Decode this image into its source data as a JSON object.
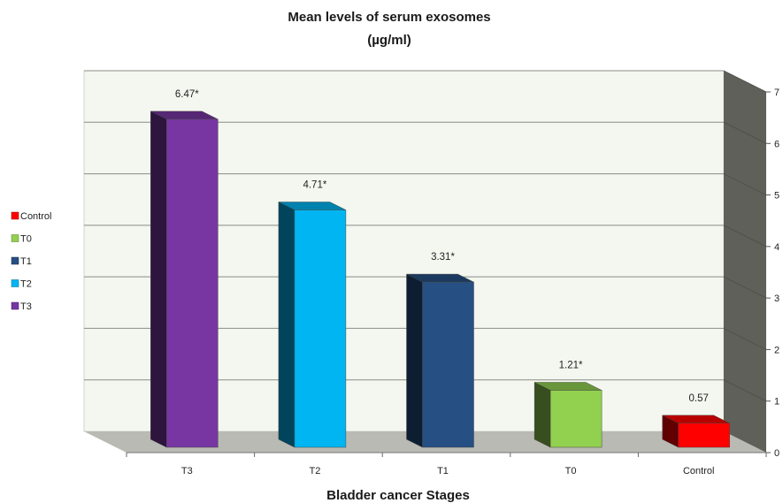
{
  "chart_data": {
    "type": "bar",
    "title": "Mean levels of serum exosomes",
    "subtitle": "(µg/ml)",
    "xlabel": "Bladder cancer Stages",
    "ylabel": "",
    "ylim": [
      0,
      7
    ],
    "yticks": [
      "0",
      "1",
      "2",
      "3",
      "4",
      "5",
      "6",
      "7"
    ],
    "y_axis_side": "right",
    "grid": true,
    "legend_position": "left",
    "categories": [
      "T3",
      "T2",
      "T1",
      "T0",
      "Control"
    ],
    "values": [
      6.47,
      4.71,
      3.31,
      1.21,
      0.57
    ],
    "data_labels": [
      "6.47*",
      "4.71*",
      "3.31*",
      "1.21*",
      "0.57"
    ],
    "colors": [
      "#7736a2",
      "#00b5f2",
      "#264f83",
      "#92d050",
      "#ff0000"
    ],
    "legend": [
      {
        "label": "Control",
        "color": "#ff0000"
      },
      {
        "label": "T0",
        "color": "#92d050"
      },
      {
        "label": "T1",
        "color": "#264f83"
      },
      {
        "label": "T2",
        "color": "#00b5f2"
      },
      {
        "label": "T3",
        "color": "#7736a2"
      }
    ]
  }
}
